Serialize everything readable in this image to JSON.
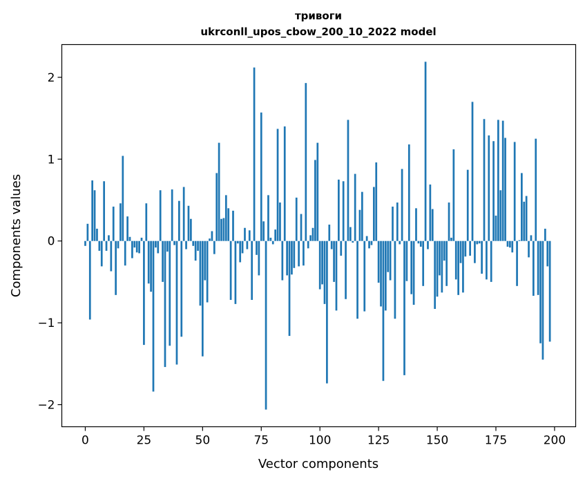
{
  "chart_data": {
    "type": "bar",
    "title": "тривоги",
    "subtitle": "ukrconll_upos_cbow_200_10_2022 model",
    "xlabel": "Vector components",
    "ylabel": "Components values",
    "xlim": [
      -10,
      209
    ],
    "ylim": [
      -2.27,
      2.4
    ],
    "xticks": [
      0,
      25,
      50,
      75,
      100,
      125,
      150,
      175,
      200
    ],
    "yticks": [
      -2,
      -1,
      0,
      1,
      2
    ],
    "ytick_labels": [
      "−2",
      "−1",
      "0",
      "1",
      "2"
    ],
    "bar_color": "#1f77b4",
    "grid": false,
    "x": [
      0,
      1,
      2,
      3,
      4,
      5,
      6,
      7,
      8,
      9,
      10,
      11,
      12,
      13,
      14,
      15,
      16,
      17,
      18,
      19,
      20,
      21,
      22,
      23,
      24,
      25,
      26,
      27,
      28,
      29,
      30,
      31,
      32,
      33,
      34,
      35,
      36,
      37,
      38,
      39,
      40,
      41,
      42,
      43,
      44,
      45,
      46,
      47,
      48,
      49,
      50,
      51,
      52,
      53,
      54,
      55,
      56,
      57,
      58,
      59,
      60,
      61,
      62,
      63,
      64,
      65,
      66,
      67,
      68,
      69,
      70,
      71,
      72,
      73,
      74,
      75,
      76,
      77,
      78,
      79,
      80,
      81,
      82,
      83,
      84,
      85,
      86,
      87,
      88,
      89,
      90,
      91,
      92,
      93,
      94,
      95,
      96,
      97,
      98,
      99,
      100,
      101,
      102,
      103,
      104,
      105,
      106,
      107,
      108,
      109,
      110,
      111,
      112,
      113,
      114,
      115,
      116,
      117,
      118,
      119,
      120,
      121,
      122,
      123,
      124,
      125,
      126,
      127,
      128,
      129,
      130,
      131,
      132,
      133,
      134,
      135,
      136,
      137,
      138,
      139,
      140,
      141,
      142,
      143,
      144,
      145,
      146,
      147,
      148,
      149,
      150,
      151,
      152,
      153,
      154,
      155,
      156,
      157,
      158,
      159,
      160,
      161,
      162,
      163,
      164,
      165,
      166,
      167,
      168,
      169,
      170,
      171,
      172,
      173,
      174,
      175,
      176,
      177,
      178,
      179,
      180,
      181,
      182,
      183,
      184,
      185,
      186,
      187,
      188,
      189,
      190,
      191,
      192,
      193,
      194,
      195,
      196,
      197,
      198,
      199
    ],
    "values": [
      -0.06,
      0.21,
      -0.96,
      0.74,
      0.62,
      0.15,
      -0.12,
      -0.31,
      0.73,
      -0.12,
      0.07,
      -0.37,
      0.42,
      -0.66,
      -0.09,
      0.46,
      1.04,
      -0.3,
      0.3,
      0.05,
      -0.21,
      -0.08,
      -0.14,
      -0.15,
      0.04,
      -1.27,
      0.46,
      -0.52,
      -0.62,
      -1.84,
      -0.08,
      -0.15,
      0.62,
      -0.5,
      -1.54,
      -0.13,
      -1.28,
      0.63,
      -0.05,
      -1.51,
      0.49,
      -1.17,
      0.66,
      -0.1,
      0.43,
      0.27,
      -0.06,
      -0.24,
      -0.12,
      -0.79,
      -1.41,
      -0.48,
      -0.75,
      0.03,
      0.12,
      -0.16,
      0.83,
      1.2,
      0.27,
      0.28,
      0.56,
      0.4,
      -0.72,
      0.37,
      -0.77,
      -0.03,
      -0.26,
      -0.15,
      0.16,
      -0.1,
      0.13,
      -0.72,
      2.12,
      -0.17,
      -0.42,
      1.57,
      0.24,
      -2.06,
      0.56,
      0.04,
      -0.04,
      0.14,
      1.37,
      0.47,
      -0.48,
      1.4,
      -0.42,
      -1.16,
      -0.41,
      -0.33,
      0.53,
      -0.31,
      0.33,
      -0.3,
      1.93,
      -0.09,
      0.07,
      0.16,
      0.99,
      1.2,
      -0.59,
      -0.53,
      -0.77,
      -1.74,
      0.2,
      -0.1,
      -0.5,
      -0.85,
      0.75,
      -0.18,
      0.73,
      -0.71,
      1.48,
      0.17,
      -0.02,
      0.82,
      -0.95,
      0.38,
      0.6,
      -0.86,
      0.06,
      -0.09,
      -0.05,
      0.66,
      0.96,
      -0.51,
      -0.8,
      -1.71,
      -0.85,
      -0.38,
      -0.48,
      0.42,
      -0.95,
      0.47,
      -0.04,
      0.88,
      -1.64,
      -0.49,
      1.18,
      -0.65,
      -0.78,
      0.4,
      -0.03,
      -0.07,
      -0.55,
      2.19,
      -0.1,
      0.69,
      0.39,
      -0.83,
      -0.68,
      -0.42,
      -0.63,
      -0.24,
      -0.55,
      0.47,
      0.04,
      1.12,
      -0.47,
      -0.66,
      -0.27,
      -0.63,
      -0.19,
      0.87,
      -0.18,
      1.7,
      -0.27,
      -0.04,
      -0.03,
      -0.4,
      1.49,
      -0.47,
      1.29,
      -0.5,
      1.22,
      0.31,
      1.48,
      0.62,
      1.47,
      1.26,
      -0.07,
      -0.08,
      -0.14,
      1.21,
      -0.55,
      0.01,
      0.83,
      0.48,
      0.55,
      -0.2,
      0.07,
      -0.67,
      1.25,
      -0.66,
      -1.25,
      -1.45,
      0.15,
      -0.31,
      -1.23,
      0.0
    ]
  }
}
